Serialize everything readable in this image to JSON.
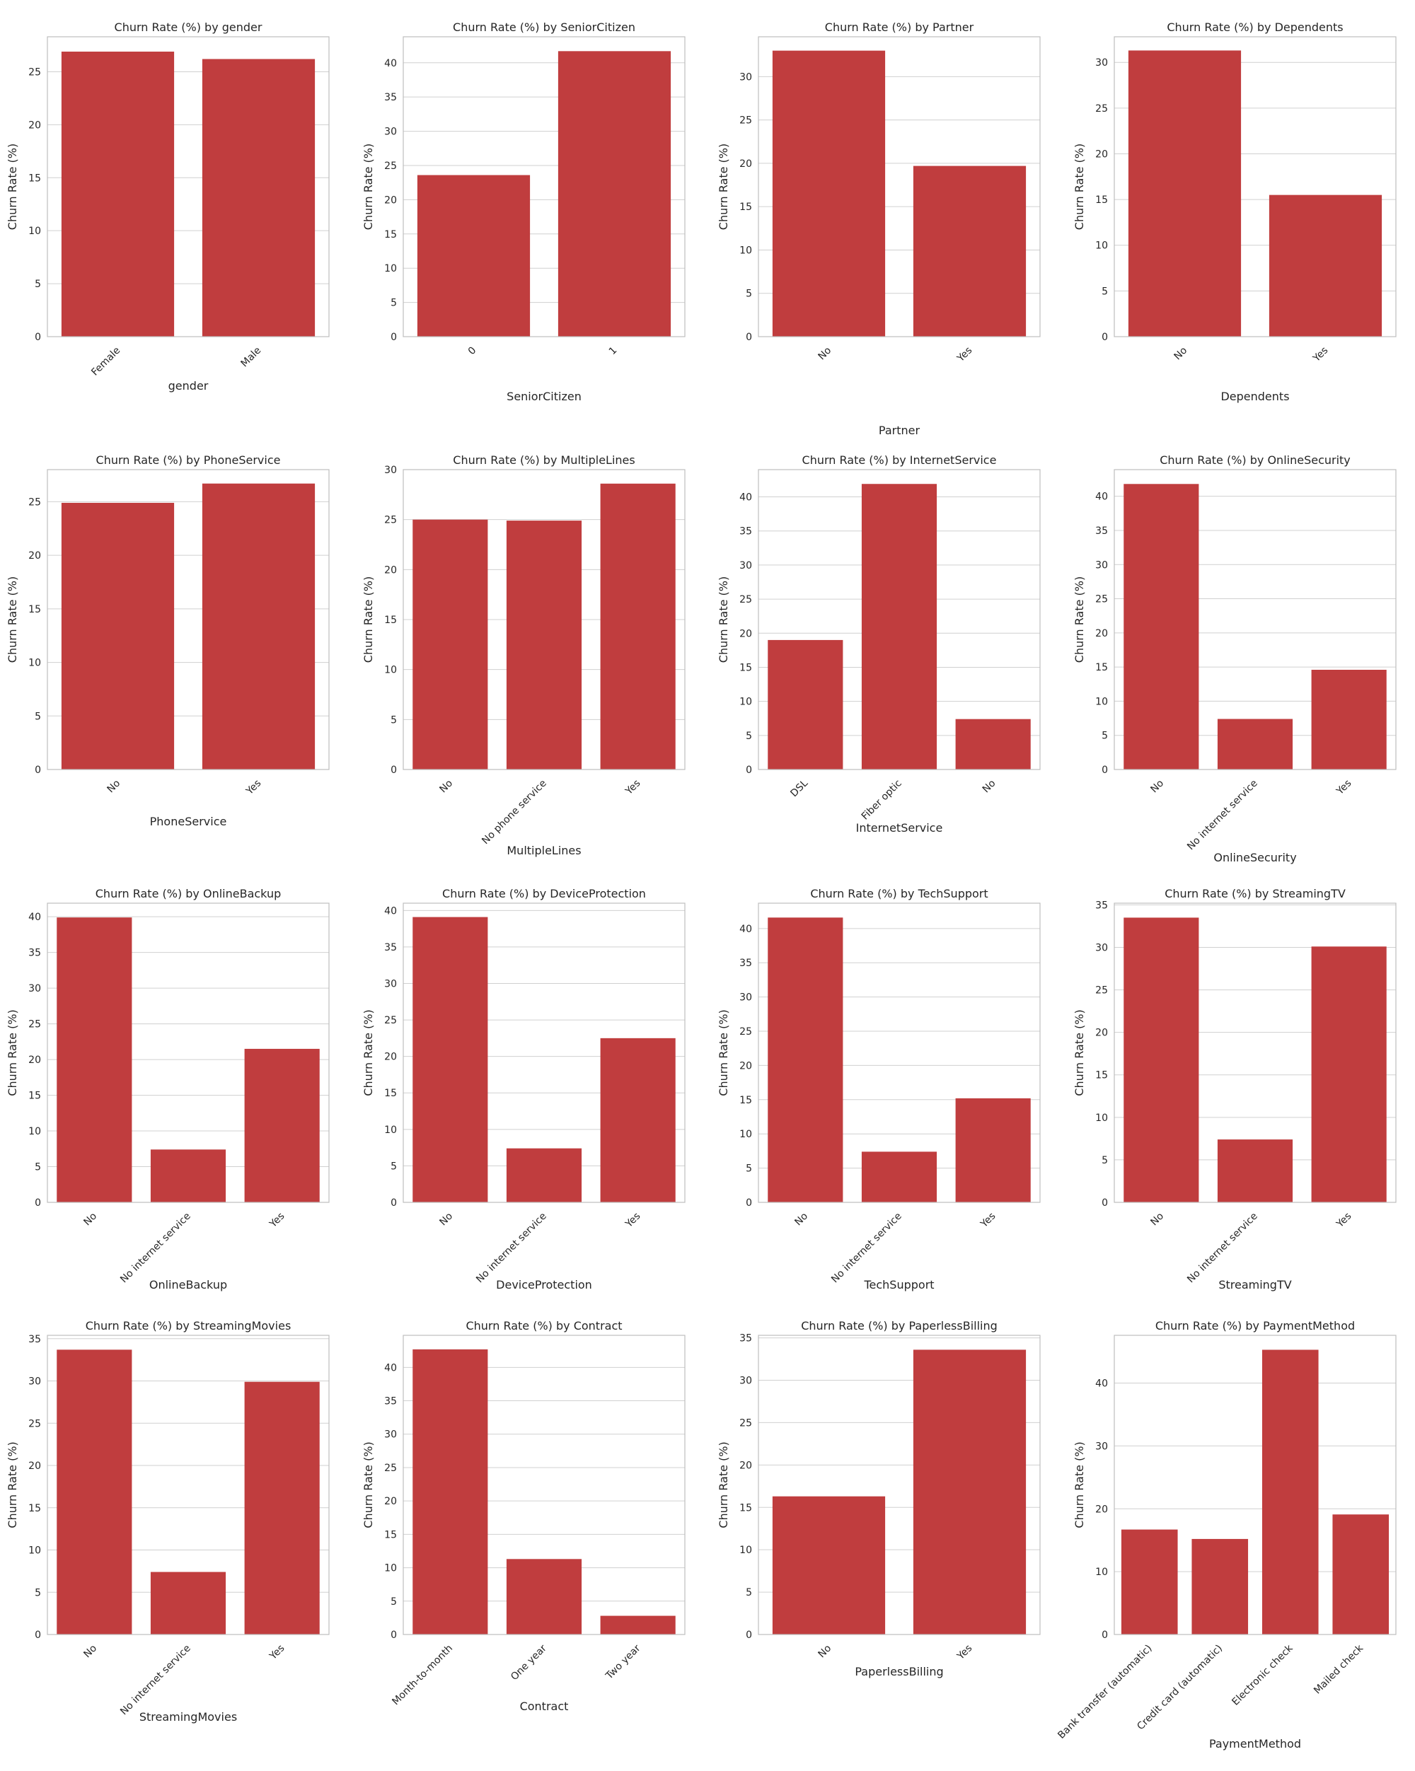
{
  "colors": {
    "bar": "#c03d3e",
    "grid": "#d0d0d0",
    "frame": "#bdbdbd",
    "text": "#262626"
  },
  "y_label": "Churn Rate (%)",
  "chart_data": [
    {
      "type": "bar",
      "title": "Churn Rate (%) by gender",
      "xlabel": "gender",
      "ylabel": "Churn Rate (%)",
      "categories": [
        "Female",
        "Male"
      ],
      "values": [
        26.9,
        26.2
      ],
      "ylim": [
        0,
        28.3
      ],
      "yticks": [
        0,
        5,
        10,
        15,
        20,
        25
      ]
    },
    {
      "type": "bar",
      "title": "Churn Rate (%) by SeniorCitizen",
      "xlabel": "SeniorCitizen",
      "ylabel": "Churn Rate (%)",
      "categories": [
        "0",
        "1"
      ],
      "values": [
        23.6,
        41.7
      ],
      "ylim": [
        0,
        43.8
      ],
      "yticks": [
        0,
        5,
        10,
        15,
        20,
        25,
        30,
        35,
        40
      ]
    },
    {
      "type": "bar",
      "title": "Churn Rate (%) by Partner",
      "xlabel": "Partner",
      "ylabel": "Churn Rate (%)",
      "categories": [
        "No",
        "Yes"
      ],
      "values": [
        33.0,
        19.7
      ],
      "ylim": [
        0,
        34.6
      ],
      "yticks": [
        0,
        5,
        10,
        15,
        20,
        25,
        30
      ]
    },
    {
      "type": "bar",
      "title": "Churn Rate (%) by Dependents",
      "xlabel": "Dependents",
      "ylabel": "Churn Rate (%)",
      "categories": [
        "No",
        "Yes"
      ],
      "values": [
        31.3,
        15.5
      ],
      "ylim": [
        0,
        32.8
      ],
      "yticks": [
        0,
        5,
        10,
        15,
        20,
        25,
        30
      ]
    },
    {
      "type": "bar",
      "title": "Churn Rate (%) by PhoneService",
      "xlabel": "PhoneService",
      "ylabel": "Churn Rate (%)",
      "categories": [
        "No",
        "Yes"
      ],
      "values": [
        24.9,
        26.7
      ],
      "ylim": [
        0,
        28.0
      ],
      "yticks": [
        0,
        5,
        10,
        15,
        20,
        25
      ]
    },
    {
      "type": "bar",
      "title": "Churn Rate (%) by MultipleLines",
      "xlabel": "MultipleLines",
      "ylabel": "Churn Rate (%)",
      "categories": [
        "No",
        "No phone service",
        "Yes"
      ],
      "values": [
        25.0,
        24.9,
        28.6
      ],
      "ylim": [
        0,
        30.0
      ],
      "yticks": [
        0,
        5,
        10,
        15,
        20,
        25,
        30
      ]
    },
    {
      "type": "bar",
      "title": "Churn Rate (%) by InternetService",
      "xlabel": "InternetService",
      "ylabel": "Churn Rate (%)",
      "categories": [
        "DSL",
        "Fiber optic",
        "No"
      ],
      "values": [
        19.0,
        41.9,
        7.4
      ],
      "ylim": [
        0,
        44.0
      ],
      "yticks": [
        0,
        5,
        10,
        15,
        20,
        25,
        30,
        35,
        40
      ]
    },
    {
      "type": "bar",
      "title": "Churn Rate (%) by OnlineSecurity",
      "xlabel": "OnlineSecurity",
      "ylabel": "Churn Rate (%)",
      "categories": [
        "No",
        "No internet service",
        "Yes"
      ],
      "values": [
        41.8,
        7.4,
        14.6
      ],
      "ylim": [
        0,
        43.9
      ],
      "yticks": [
        0,
        5,
        10,
        15,
        20,
        25,
        30,
        35,
        40
      ]
    },
    {
      "type": "bar",
      "title": "Churn Rate (%) by OnlineBackup",
      "xlabel": "OnlineBackup",
      "ylabel": "Churn Rate (%)",
      "categories": [
        "No",
        "No internet service",
        "Yes"
      ],
      "values": [
        39.9,
        7.4,
        21.5
      ],
      "ylim": [
        0,
        41.9
      ],
      "yticks": [
        0,
        5,
        10,
        15,
        20,
        25,
        30,
        35,
        40
      ]
    },
    {
      "type": "bar",
      "title": "Churn Rate (%) by DeviceProtection",
      "xlabel": "DeviceProtection",
      "ylabel": "Churn Rate (%)",
      "categories": [
        "No",
        "No internet service",
        "Yes"
      ],
      "values": [
        39.1,
        7.4,
        22.5
      ],
      "ylim": [
        0,
        41.0
      ],
      "yticks": [
        0,
        5,
        10,
        15,
        20,
        25,
        30,
        35,
        40
      ]
    },
    {
      "type": "bar",
      "title": "Churn Rate (%) by TechSupport",
      "xlabel": "TechSupport",
      "ylabel": "Churn Rate (%)",
      "categories": [
        "No",
        "No internet service",
        "Yes"
      ],
      "values": [
        41.6,
        7.4,
        15.2
      ],
      "ylim": [
        0,
        43.7
      ],
      "yticks": [
        0,
        5,
        10,
        15,
        20,
        25,
        30,
        35,
        40
      ]
    },
    {
      "type": "bar",
      "title": "Churn Rate (%) by StreamingTV",
      "xlabel": "StreamingTV",
      "ylabel": "Churn Rate (%)",
      "categories": [
        "No",
        "No internet service",
        "Yes"
      ],
      "values": [
        33.5,
        7.4,
        30.1
      ],
      "ylim": [
        0,
        35.2
      ],
      "yticks": [
        0,
        5,
        10,
        15,
        20,
        25,
        30,
        35
      ]
    },
    {
      "type": "bar",
      "title": "Churn Rate (%) by StreamingMovies",
      "xlabel": "StreamingMovies",
      "ylabel": "Churn Rate (%)",
      "categories": [
        "No",
        "No internet service",
        "Yes"
      ],
      "values": [
        33.7,
        7.4,
        29.9
      ],
      "ylim": [
        0,
        35.4
      ],
      "yticks": [
        0,
        5,
        10,
        15,
        20,
        25,
        30,
        35
      ]
    },
    {
      "type": "bar",
      "title": "Churn Rate (%) by Contract",
      "xlabel": "Contract",
      "ylabel": "Churn Rate (%)",
      "categories": [
        "Month-to-month",
        "One year",
        "Two year"
      ],
      "values": [
        42.7,
        11.3,
        2.8
      ],
      "ylim": [
        0,
        44.8
      ],
      "yticks": [
        0,
        5,
        10,
        15,
        20,
        25,
        30,
        35,
        40
      ]
    },
    {
      "type": "bar",
      "title": "Churn Rate (%) by PaperlessBilling",
      "xlabel": "PaperlessBilling",
      "ylabel": "Churn Rate (%)",
      "categories": [
        "No",
        "Yes"
      ],
      "values": [
        16.3,
        33.6
      ],
      "ylim": [
        0,
        35.3
      ],
      "yticks": [
        0,
        5,
        10,
        15,
        20,
        25,
        30,
        35
      ]
    },
    {
      "type": "bar",
      "title": "Churn Rate (%) by PaymentMethod",
      "xlabel": "PaymentMethod",
      "ylabel": "Churn Rate (%)",
      "categories": [
        "Bank transfer (automatic)",
        "Credit card (automatic)",
        "Electronic check",
        "Mailed check"
      ],
      "values": [
        16.7,
        15.2,
        45.3,
        19.1
      ],
      "ylim": [
        0,
        47.6
      ],
      "yticks": [
        0,
        10,
        20,
        30,
        40
      ]
    }
  ]
}
